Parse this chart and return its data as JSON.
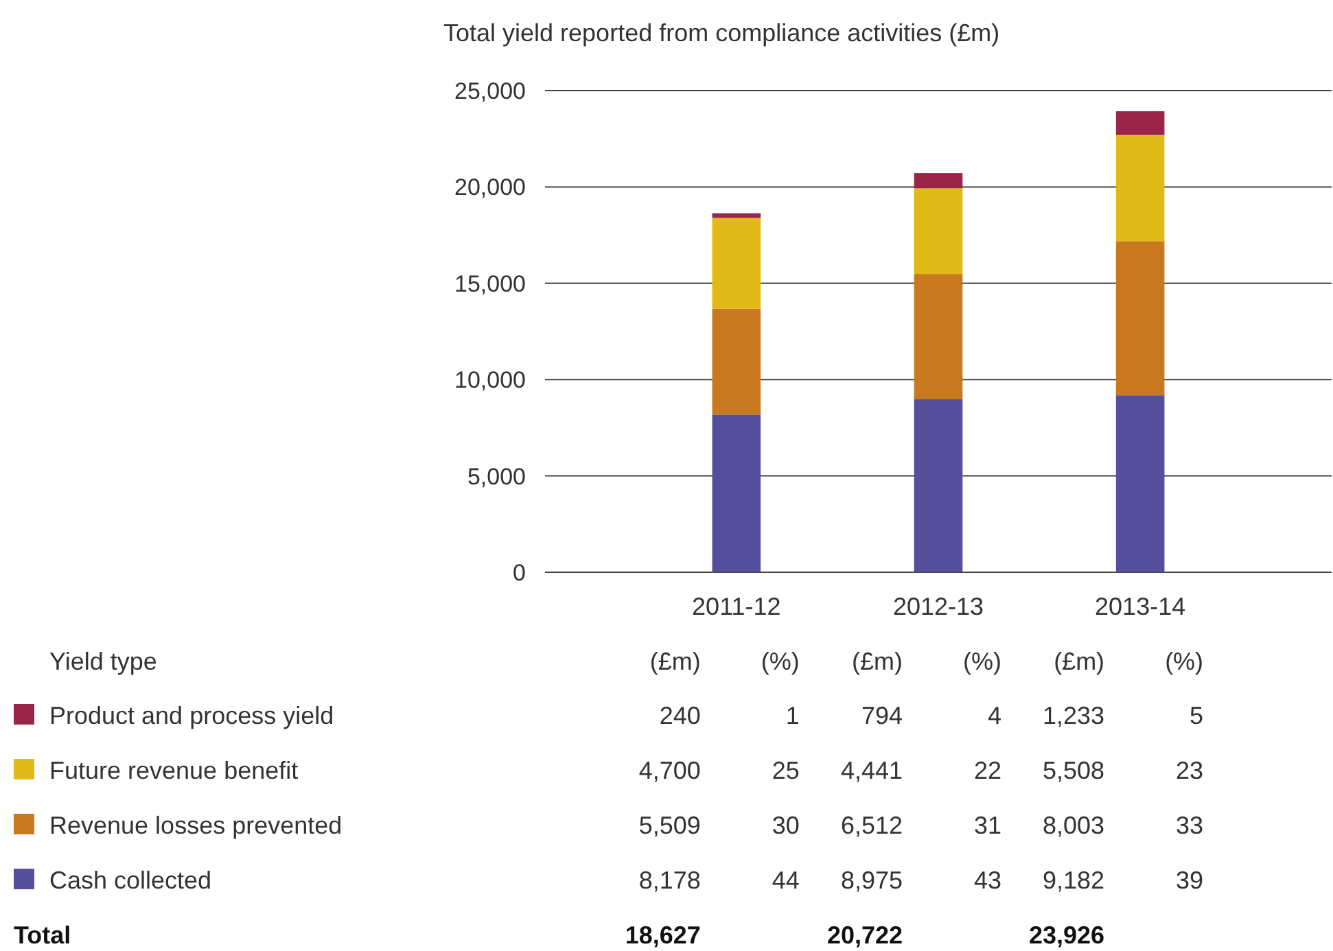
{
  "chart_data": {
    "type": "bar",
    "title": "Total yield reported from compliance activities (£m)",
    "categories": [
      "2011-12",
      "2012-13",
      "2013-14"
    ],
    "stacked": true,
    "series": [
      {
        "name": "Cash collected",
        "color": "#554f9b",
        "values": [
          8178,
          8975,
          9182
        ],
        "value_labels": [
          "8,178",
          "8,975",
          "9,182"
        ]
      },
      {
        "name": "Revenue losses prevented",
        "color": "#c87920",
        "values": [
          5509,
          6512,
          8003
        ],
        "value_labels": [
          "5,509",
          "6,512",
          "8,003"
        ]
      },
      {
        "name": "Future revenue benefit",
        "color": "#e0ba17",
        "values": [
          4700,
          4441,
          5508
        ],
        "value_labels": [
          "4,700",
          "4,441",
          "5,508"
        ]
      },
      {
        "name": "Product and process yield",
        "color": "#9a2548",
        "values": [
          240,
          794,
          1233
        ],
        "value_labels": [
          "240",
          "794",
          "1,233"
        ]
      }
    ],
    "ylim": [
      0,
      25000
    ],
    "yticks": [
      0,
      {
        "value": 5000,
        "label": "5,000"
      },
      {
        "value": 10000,
        "label": "10,000"
      },
      {
        "value": 15000,
        "label": "15,000"
      },
      {
        "value": 20000,
        "label": "20,000"
      },
      {
        "value": 25000,
        "label": "25,000"
      }
    ],
    "grid": "y",
    "legend": "bottom left",
    "annotations": [
      "Yield type",
      "(£m)",
      "(%)",
      "Total",
      "1",
      "4",
      "5",
      "25",
      "22",
      "23",
      "30",
      "31",
      "33",
      "44",
      "43",
      "39",
      "18,627",
      "20,722",
      "23,926"
    ]
  }
}
